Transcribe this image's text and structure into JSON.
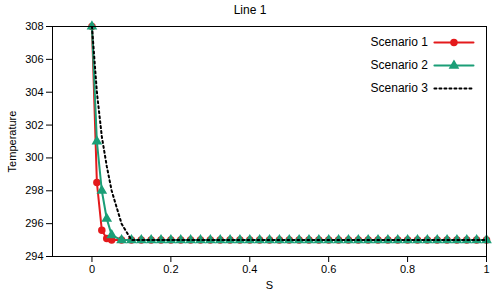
{
  "chart_data": {
    "type": "line",
    "title": "Line 1",
    "x_label": "S",
    "y_label": "Temperature",
    "x": [
      0,
      0.0125,
      0.025,
      0.0375,
      0.05,
      0.075,
      0.1,
      0.125,
      0.15,
      0.175,
      0.2,
      0.225,
      0.25,
      0.275,
      0.3,
      0.325,
      0.35,
      0.375,
      0.4,
      0.425,
      0.45,
      0.475,
      0.5,
      0.525,
      0.55,
      0.575,
      0.6,
      0.625,
      0.65,
      0.675,
      0.7,
      0.725,
      0.75,
      0.775,
      0.8,
      0.825,
      0.85,
      0.875,
      0.9,
      0.925,
      0.95,
      0.975,
      1
    ],
    "series": [
      {
        "name": "Scenario 1",
        "color": "#e41a1c",
        "marker": "circle",
        "line_style": "solid",
        "values": [
          308,
          298.5,
          295.6,
          295.1,
          295,
          295,
          295,
          295,
          295,
          295,
          295,
          295,
          295,
          295,
          295,
          295,
          295,
          295,
          295,
          295,
          295,
          295,
          295,
          295,
          295,
          295,
          295,
          295,
          295,
          295,
          295,
          295,
          295,
          295,
          295,
          295,
          295,
          295,
          295,
          295,
          295,
          295,
          295
        ]
      },
      {
        "name": "Scenario 2",
        "color": "#1b9e77",
        "marker": "triangle",
        "line_style": "solid",
        "values": [
          308,
          301,
          298,
          296.3,
          295.3,
          295,
          295,
          295,
          295,
          295,
          295,
          295,
          295,
          295,
          295,
          295,
          295,
          295,
          295,
          295,
          295,
          295,
          295,
          295,
          295,
          295,
          295,
          295,
          295,
          295,
          295,
          295,
          295,
          295,
          295,
          295,
          295,
          295,
          295,
          295,
          295,
          295,
          295
        ]
      },
      {
        "name": "Scenario 3",
        "color": "#000000",
        "marker": "none",
        "line_style": "dotted",
        "values": [
          308,
          304,
          301.3,
          299.5,
          298,
          296,
          295,
          295,
          295,
          295,
          295,
          295,
          295,
          295,
          295,
          295,
          295,
          295,
          295,
          295,
          295,
          295,
          295,
          295,
          295,
          295,
          295,
          295,
          295,
          295,
          295,
          295,
          295,
          295,
          295,
          295,
          295,
          295,
          295,
          295,
          295,
          295,
          295
        ]
      }
    ],
    "xlim": [
      -0.1,
      1
    ],
    "xticks": [
      0,
      0.2,
      0.4,
      0.6,
      0.8,
      1
    ],
    "ylim": [
      294,
      308
    ],
    "yticks": [
      294,
      296,
      298,
      300,
      302,
      304,
      306,
      308
    ],
    "grid": false,
    "legend": "top-right"
  }
}
